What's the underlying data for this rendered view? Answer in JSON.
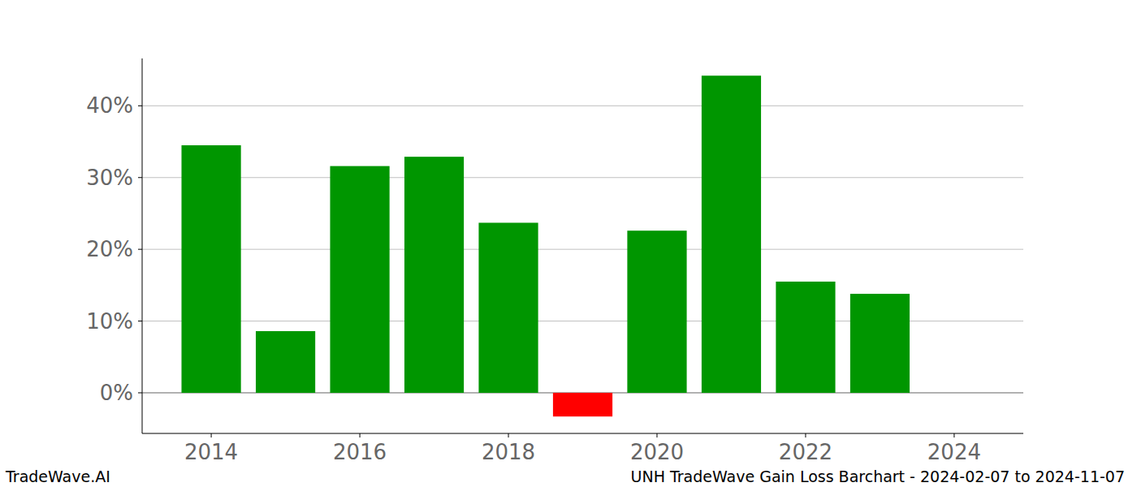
{
  "chart_data": {
    "type": "bar",
    "title": "UNH TradeWave Gain Loss Barchart - 2024-02-07 to 2024-11-07",
    "annotations": [
      "TradeWave.AI"
    ],
    "x": [
      2014,
      2015,
      2016,
      2017,
      2018,
      2019,
      2020,
      2021,
      2022,
      2023
    ],
    "values": [
      34.5,
      8.6,
      31.6,
      32.9,
      23.7,
      -3.3,
      22.6,
      44.2,
      15.5,
      13.8
    ],
    "colors": [
      "#009600",
      "#009600",
      "#009600",
      "#009600",
      "#009600",
      "#ff0000",
      "#009600",
      "#009600",
      "#009600",
      "#009600"
    ],
    "xlim": [
      2013.07,
      2024.93
    ],
    "xticks": [
      2014,
      2016,
      2018,
      2020,
      2022,
      2024
    ],
    "ylim": [
      -5.66,
      46.6
    ],
    "yticks": [
      {
        "value": 0,
        "label": "0%"
      },
      {
        "value": 10,
        "label": "10%"
      },
      {
        "value": 20,
        "label": "20%"
      },
      {
        "value": 30,
        "label": "30%"
      },
      {
        "value": 40,
        "label": "40%"
      }
    ],
    "grid": true
  }
}
